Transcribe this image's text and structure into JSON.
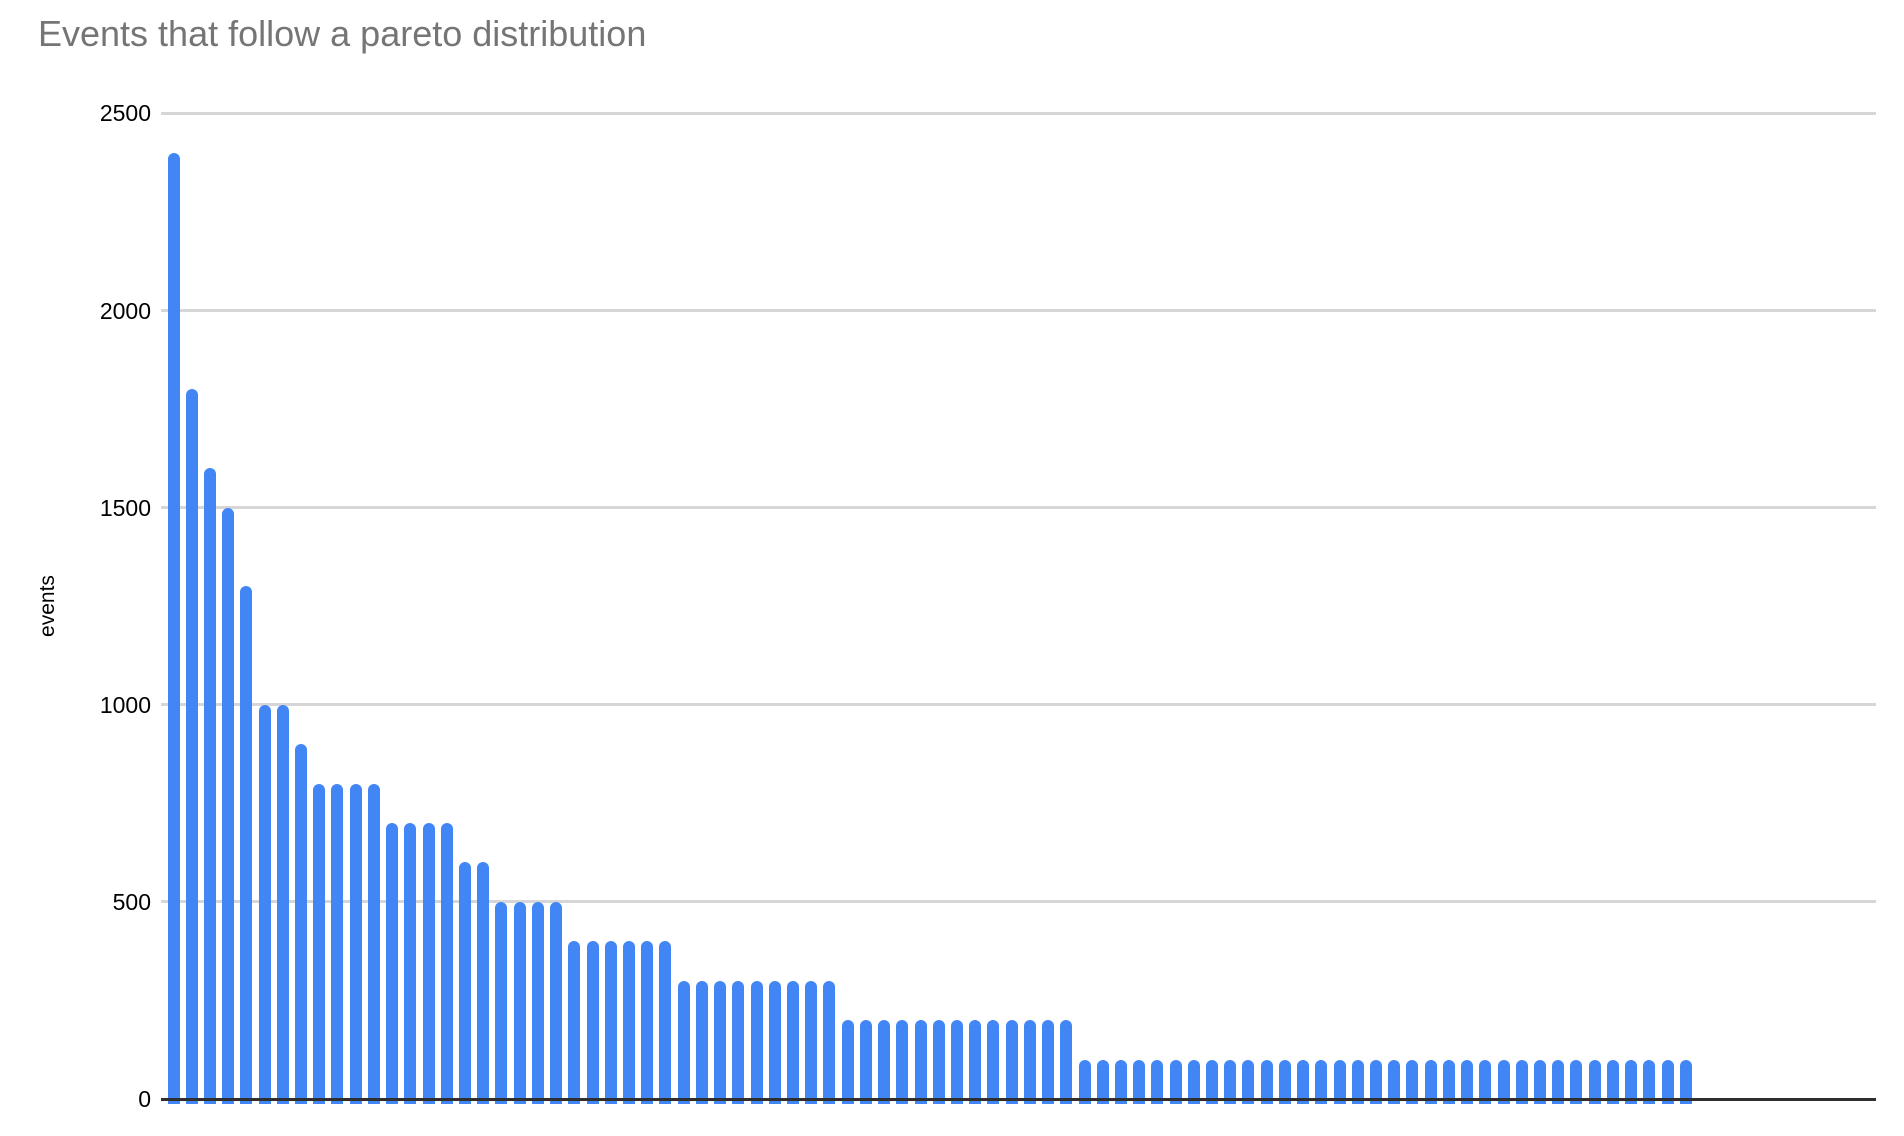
{
  "page": {
    "background": "#ffffff"
  },
  "chart_data": {
    "type": "bar",
    "title": "Events that follow a pareto distribution",
    "xlabel": "",
    "ylabel": "events",
    "ylim": [
      0,
      2500
    ],
    "y_ticks": [
      0,
      500,
      1000,
      1500,
      2000,
      2500
    ],
    "x_tick_labels": [],
    "grid": true,
    "legend_position": "none",
    "bar_color": "#4285f4",
    "title_color": "#757575",
    "tick_label_color": "#000000",
    "gridline_color": "#d6d6d6",
    "axis_color": "#2f2f2f",
    "values": [
      2400,
      1800,
      1600,
      1500,
      1300,
      1000,
      1000,
      900,
      800,
      800,
      800,
      800,
      700,
      700,
      700,
      700,
      600,
      600,
      500,
      500,
      500,
      500,
      400,
      400,
      400,
      400,
      400,
      400,
      300,
      300,
      300,
      300,
      300,
      300,
      300,
      300,
      300,
      200,
      200,
      200,
      200,
      200,
      200,
      200,
      200,
      200,
      200,
      200,
      200,
      200,
      100,
      100,
      100,
      100,
      100,
      100,
      100,
      100,
      100,
      100,
      100,
      100,
      100,
      100,
      100,
      100,
      100,
      100,
      100,
      100,
      100,
      100,
      100,
      100,
      100,
      100,
      100,
      100,
      100,
      100,
      100,
      100,
      100,
      100
    ]
  }
}
